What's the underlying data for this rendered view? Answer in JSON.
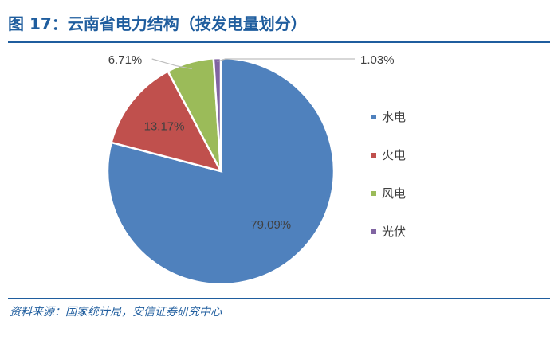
{
  "header": {
    "title": "图 17：云南省电力结构（按发电量划分）"
  },
  "footer": {
    "source": "资料来源：国家统计局，安信证券研究中心"
  },
  "chart_data": {
    "type": "pie",
    "categories": [
      "水电",
      "火电",
      "风电",
      "光伏"
    ],
    "values": [
      79.09,
      13.17,
      6.71,
      1.03
    ],
    "labels": [
      "79.09%",
      "13.17%",
      "6.71%",
      "1.03%"
    ],
    "colors": [
      "#4f81bd",
      "#c0504d",
      "#9bbb59",
      "#8064a2"
    ],
    "legend_position": "right"
  }
}
